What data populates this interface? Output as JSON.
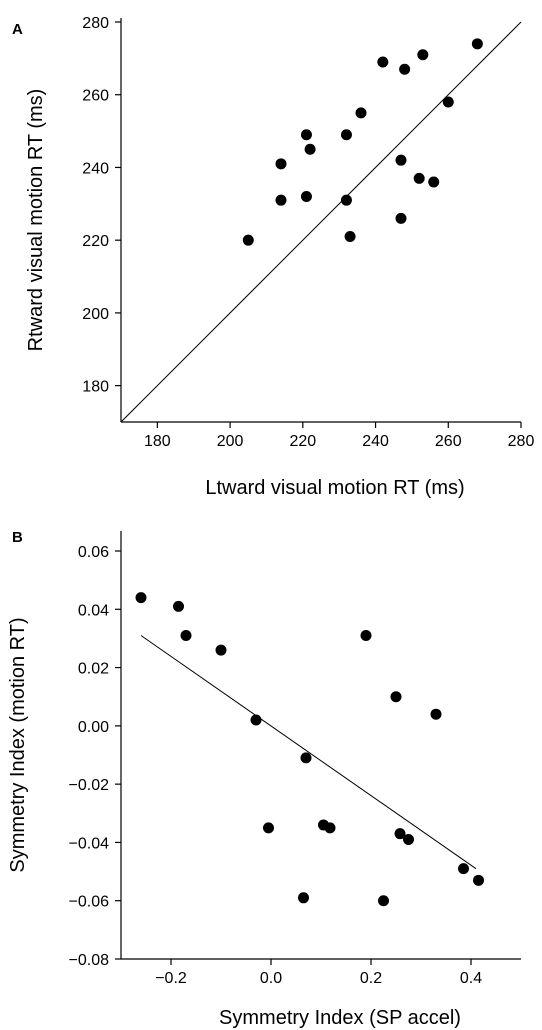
{
  "chart_data": [
    {
      "panel": "A",
      "type": "scatter",
      "xlabel": "Ltward visual motion RT (ms)",
      "ylabel": "Rtward visual motion RT (ms)",
      "xlim": [
        170,
        280
      ],
      "ylim": [
        170,
        280
      ],
      "xticks": [
        "180",
        "200",
        "220",
        "240",
        "260",
        "280"
      ],
      "yticks": [
        "180",
        "200",
        "220",
        "240",
        "260",
        "280"
      ],
      "reference_line": "identity",
      "points": [
        {
          "x": 205,
          "y": 220
        },
        {
          "x": 214,
          "y": 241
        },
        {
          "x": 214,
          "y": 231
        },
        {
          "x": 221,
          "y": 249
        },
        {
          "x": 221,
          "y": 232
        },
        {
          "x": 222,
          "y": 245
        },
        {
          "x": 232,
          "y": 249
        },
        {
          "x": 232,
          "y": 231
        },
        {
          "x": 233,
          "y": 221
        },
        {
          "x": 236,
          "y": 255
        },
        {
          "x": 242,
          "y": 269
        },
        {
          "x": 247,
          "y": 242
        },
        {
          "x": 247,
          "y": 226
        },
        {
          "x": 248,
          "y": 267
        },
        {
          "x": 252,
          "y": 237
        },
        {
          "x": 253,
          "y": 271
        },
        {
          "x": 256,
          "y": 236
        },
        {
          "x": 260,
          "y": 258
        },
        {
          "x": 268,
          "y": 274
        }
      ]
    },
    {
      "panel": "B",
      "type": "scatter",
      "xlabel": "Symmetry Index (SP accel)",
      "ylabel": "Symmetry Index (motion RT)",
      "xlim": [
        -0.3,
        0.5
      ],
      "ylim": [
        -0.08,
        0.06
      ],
      "xticks": [
        "−0.2",
        "0.0",
        "0.2",
        "0.4"
      ],
      "xtick_values": [
        -0.2,
        0.0,
        0.2,
        0.4
      ],
      "yticks": [
        "0.06",
        "0.04",
        "0.02",
        "0.00",
        "−0.02",
        "−0.04",
        "−0.06",
        "−0.08"
      ],
      "ytick_values": [
        0.06,
        0.04,
        0.02,
        0.0,
        -0.02,
        -0.04,
        -0.06,
        -0.08
      ],
      "regression_line": {
        "x": [
          -0.26,
          0.41
        ],
        "y": [
          0.031,
          -0.049
        ]
      },
      "points": [
        {
          "x": -0.26,
          "y": 0.044
        },
        {
          "x": -0.185,
          "y": 0.041
        },
        {
          "x": -0.17,
          "y": 0.031
        },
        {
          "x": -0.1,
          "y": 0.026
        },
        {
          "x": -0.03,
          "y": 0.002
        },
        {
          "x": -0.005,
          "y": -0.035
        },
        {
          "x": 0.065,
          "y": -0.059
        },
        {
          "x": 0.07,
          "y": -0.011
        },
        {
          "x": 0.105,
          "y": -0.034
        },
        {
          "x": 0.118,
          "y": -0.035
        },
        {
          "x": 0.19,
          "y": 0.031
        },
        {
          "x": 0.225,
          "y": -0.06
        },
        {
          "x": 0.25,
          "y": 0.01
        },
        {
          "x": 0.258,
          "y": -0.037
        },
        {
          "x": 0.275,
          "y": -0.039
        },
        {
          "x": 0.33,
          "y": 0.004
        },
        {
          "x": 0.385,
          "y": -0.049
        },
        {
          "x": 0.415,
          "y": -0.053
        }
      ]
    }
  ]
}
